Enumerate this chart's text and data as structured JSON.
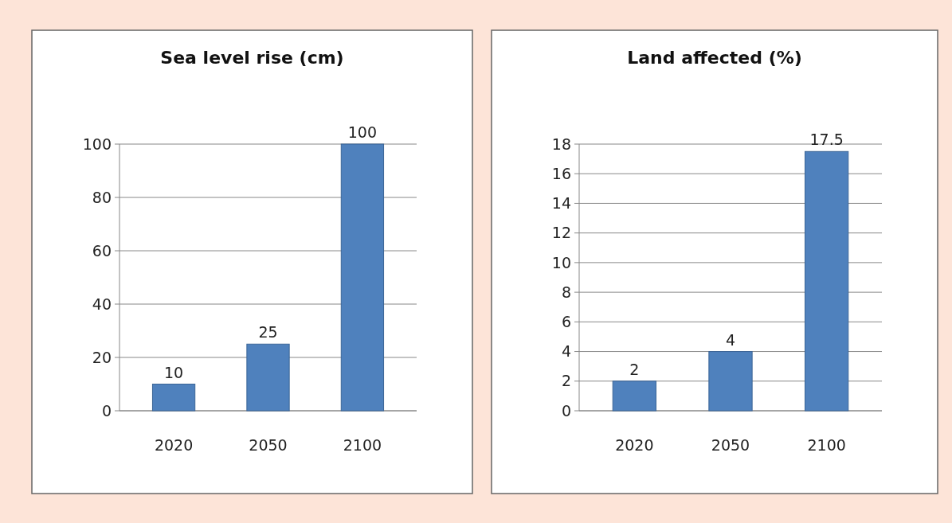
{
  "chart_data": [
    {
      "type": "bar",
      "title": "Sea level rise (cm)",
      "categories": [
        "2020",
        "2050",
        "2100"
      ],
      "values": [
        10,
        25,
        100
      ],
      "color": "#4f81bd",
      "ylim": [
        0,
        100
      ],
      "yticks": [
        0,
        20,
        40,
        60,
        80,
        100
      ],
      "grid": "y",
      "data_labels": true
    },
    {
      "type": "bar",
      "title": "Land affected (%)",
      "categories": [
        "2020",
        "2050",
        "2100"
      ],
      "values": [
        2,
        4,
        17.5
      ],
      "color": "#4f81bd",
      "ylim": [
        0,
        18
      ],
      "yticks": [
        0,
        2,
        4,
        6,
        8,
        10,
        12,
        14,
        16,
        18
      ],
      "grid": "y",
      "data_labels": true
    }
  ]
}
